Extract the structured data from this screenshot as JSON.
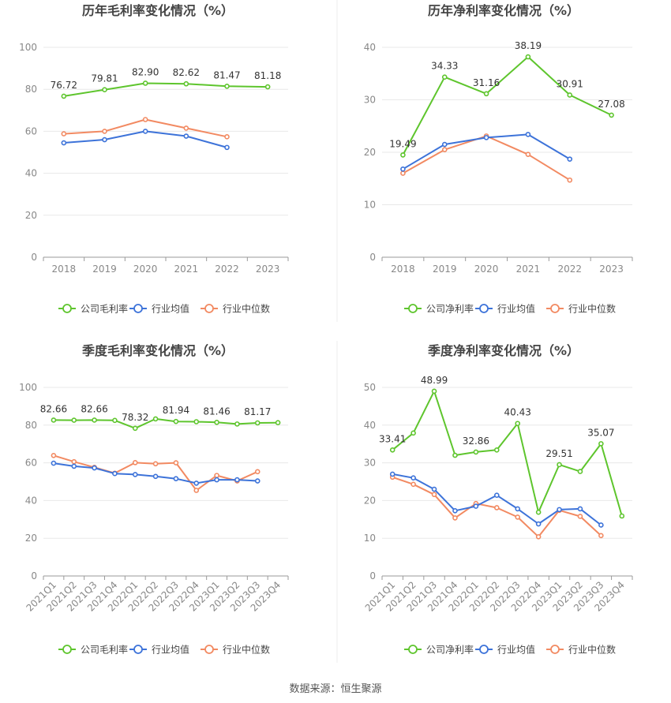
{
  "colors": {
    "company": "#5ec52d",
    "avg": "#3d73d9",
    "median": "#f28a62",
    "grid": "#e8e8e8",
    "axis": "#9a9a9a",
    "text": "#888888",
    "title": "#444444",
    "label": "#333333"
  },
  "source": "数据来源：恒生聚源",
  "chart_data": [
    {
      "type": "line",
      "title": "历年毛利率变化情况（%）",
      "categories": [
        "2018",
        "2019",
        "2020",
        "2021",
        "2022",
        "2023"
      ],
      "ylim": [
        0,
        100
      ],
      "yticks": [
        0,
        20,
        40,
        60,
        80,
        100
      ],
      "series": [
        {
          "name": "公司毛利率",
          "key": "company",
          "values": [
            76.72,
            79.81,
            82.9,
            82.62,
            81.47,
            81.18
          ]
        },
        {
          "name": "行业均值",
          "key": "avg",
          "values": [
            54.5,
            56.0,
            60.0,
            57.7,
            52.3,
            null
          ]
        },
        {
          "name": "行业中位数",
          "key": "median",
          "values": [
            58.8,
            60.0,
            65.6,
            61.5,
            57.4,
            null
          ]
        }
      ],
      "labels": [
        {
          "index": 0,
          "text": "76.72"
        },
        {
          "index": 1,
          "text": "79.81"
        },
        {
          "index": 2,
          "text": "82.90"
        },
        {
          "index": 3,
          "text": "82.62"
        },
        {
          "index": 4,
          "text": "81.47"
        },
        {
          "index": 5,
          "text": "81.18"
        }
      ]
    },
    {
      "type": "line",
      "title": "历年净利率变化情况（%）",
      "categories": [
        "2018",
        "2019",
        "2020",
        "2021",
        "2022",
        "2023"
      ],
      "ylim": [
        0,
        40
      ],
      "yticks": [
        0,
        10,
        20,
        30,
        40
      ],
      "series": [
        {
          "name": "公司净利率",
          "key": "company",
          "values": [
            19.49,
            34.33,
            31.16,
            38.19,
            30.91,
            27.08
          ]
        },
        {
          "name": "行业均值",
          "key": "avg",
          "values": [
            16.8,
            21.5,
            22.8,
            23.4,
            18.7,
            null
          ]
        },
        {
          "name": "行业中位数",
          "key": "median",
          "values": [
            16.0,
            20.5,
            23.1,
            19.6,
            14.7,
            null
          ]
        }
      ],
      "labels": [
        {
          "index": 0,
          "text": "19.49"
        },
        {
          "index": 1,
          "text": "34.33"
        },
        {
          "index": 2,
          "text": "31.16"
        },
        {
          "index": 3,
          "text": "38.19"
        },
        {
          "index": 4,
          "text": "30.91"
        },
        {
          "index": 5,
          "text": "27.08"
        }
      ]
    },
    {
      "type": "line",
      "title": "季度毛利率变化情况（%）",
      "categories": [
        "2021Q1",
        "2021Q2",
        "2021Q3",
        "2021Q4",
        "2022Q1",
        "2022Q2",
        "2022Q3",
        "2022Q4",
        "2023Q1",
        "2023Q2",
        "2023Q3",
        "2023Q4"
      ],
      "ylim": [
        0,
        100
      ],
      "yticks": [
        0,
        20,
        40,
        60,
        80,
        100
      ],
      "rotate_ticks": true,
      "series": [
        {
          "name": "公司毛利率",
          "key": "company",
          "values": [
            82.66,
            82.6,
            82.66,
            82.5,
            78.32,
            83.3,
            81.94,
            81.8,
            81.46,
            80.6,
            81.17,
            81.3
          ]
        },
        {
          "name": "行业均值",
          "key": "avg",
          "values": [
            59.8,
            58.2,
            57.3,
            54.3,
            53.8,
            52.8,
            51.6,
            49.2,
            51.0,
            51.0,
            50.4,
            null
          ]
        },
        {
          "name": "行业中位数",
          "key": "median",
          "values": [
            63.9,
            60.6,
            57.6,
            54.5,
            60.1,
            59.5,
            60.0,
            45.4,
            53.3,
            50.4,
            55.3,
            null
          ]
        }
      ],
      "labels": [
        {
          "index": 0,
          "text": "82.66"
        },
        {
          "index": 2,
          "text": "82.66"
        },
        {
          "index": 4,
          "text": "78.32"
        },
        {
          "index": 6,
          "text": "81.94"
        },
        {
          "index": 8,
          "text": "81.46"
        },
        {
          "index": 10,
          "text": "81.17"
        }
      ]
    },
    {
      "type": "line",
      "title": "季度净利率变化情况（%）",
      "categories": [
        "2021Q1",
        "2021Q2",
        "2021Q3",
        "2021Q4",
        "2022Q1",
        "2022Q2",
        "2022Q3",
        "2022Q4",
        "2023Q1",
        "2023Q2",
        "2023Q3",
        "2023Q4"
      ],
      "ylim": [
        0,
        50
      ],
      "yticks": [
        0,
        10,
        20,
        30,
        40,
        50
      ],
      "rotate_ticks": true,
      "series": [
        {
          "name": "公司净利率",
          "key": "company",
          "values": [
            33.41,
            37.9,
            48.99,
            32.0,
            32.86,
            33.4,
            40.43,
            16.9,
            29.51,
            27.7,
            35.07,
            15.9
          ]
        },
        {
          "name": "行业均值",
          "key": "avg",
          "values": [
            27.0,
            26.0,
            23.0,
            17.3,
            18.5,
            21.4,
            17.8,
            13.8,
            17.6,
            17.8,
            13.5,
            null
          ]
        },
        {
          "name": "行业中位数",
          "key": "median",
          "values": [
            26.2,
            24.3,
            21.6,
            15.4,
            19.2,
            18.1,
            15.6,
            10.4,
            17.4,
            15.8,
            10.7,
            null
          ]
        }
      ],
      "labels": [
        {
          "index": 0,
          "text": "33.41"
        },
        {
          "index": 2,
          "text": "48.99"
        },
        {
          "index": 4,
          "text": "32.86"
        },
        {
          "index": 6,
          "text": "40.43"
        },
        {
          "index": 8,
          "text": "29.51"
        },
        {
          "index": 10,
          "text": "35.07"
        }
      ]
    }
  ]
}
